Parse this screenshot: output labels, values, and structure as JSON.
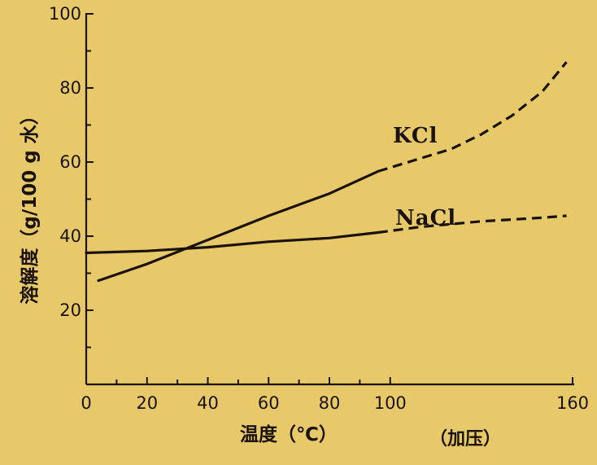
{
  "chart_data": {
    "type": "line",
    "xlabel": "温度（℃）",
    "x_note": "（加压）",
    "ylabel": "溶解度（g/100 g 水）",
    "xlim": [
      0,
      160
    ],
    "ylim": [
      0,
      100
    ],
    "x_ticks": [
      0,
      20,
      40,
      60,
      80,
      100,
      160
    ],
    "x_minor_ticks": [
      10,
      30,
      50,
      70,
      90
    ],
    "y_ticks": [
      20,
      40,
      60,
      80,
      100
    ],
    "y_minor_ticks": [
      10,
      30,
      50,
      70,
      90
    ],
    "grid": false,
    "series": [
      {
        "name": "KCl",
        "solid": [
          [
            4,
            28
          ],
          [
            20,
            32.5
          ],
          [
            40,
            39
          ],
          [
            60,
            45.5
          ],
          [
            80,
            51.5
          ],
          [
            96,
            57.5
          ]
        ],
        "dashed": [
          [
            96,
            57.5
          ],
          [
            110,
            61
          ],
          [
            120,
            63.5
          ],
          [
            130,
            67.5
          ],
          [
            140,
            72.5
          ],
          [
            150,
            79
          ],
          [
            158,
            87
          ]
        ]
      },
      {
        "name": "NaCl",
        "solid": [
          [
            0,
            35.5
          ],
          [
            20,
            36
          ],
          [
            40,
            37
          ],
          [
            60,
            38.5
          ],
          [
            80,
            39.5
          ],
          [
            96,
            41
          ]
        ],
        "dashed": [
          [
            96,
            41
          ],
          [
            110,
            42.5
          ],
          [
            130,
            44
          ],
          [
            150,
            45
          ],
          [
            158,
            45.5
          ]
        ]
      }
    ]
  }
}
